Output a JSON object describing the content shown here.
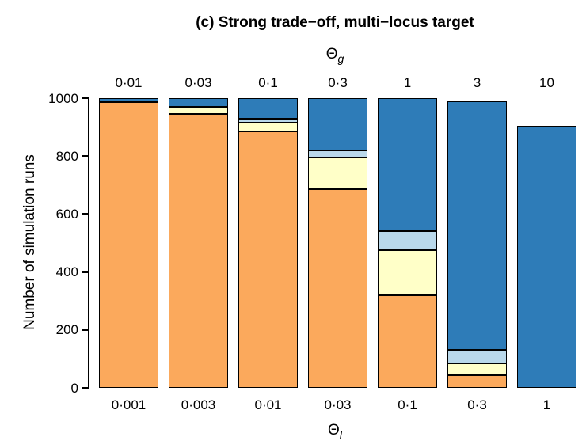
{
  "figure": {
    "title": "(c) Strong trade−off, multi−locus target",
    "ylabel": "Number of simulation runs"
  },
  "chart_data": {
    "type": "bar",
    "stacked": true,
    "title": "(c) Strong trade−off, multi−locus target",
    "ylabel": "Number of simulation runs",
    "ylim": [
      0,
      1000
    ],
    "yticks": [
      0,
      200,
      400,
      600,
      800,
      1000
    ],
    "grid": false,
    "legend": "none",
    "top_axis": {
      "label": "Θ",
      "label_sub": "g",
      "ticks": [
        "0·01",
        "0·03",
        "0·1",
        "0·3",
        "1",
        "3",
        "10"
      ]
    },
    "bottom_axis": {
      "label": "Θ",
      "label_sub": "l",
      "ticks": [
        "0·001",
        "0·003",
        "0·01",
        "0·03",
        "0·1",
        "0·3",
        "1"
      ]
    },
    "series": [
      {
        "name": "orange-segment",
        "color": "#FBA95C",
        "values": [
          985,
          945,
          885,
          685,
          320,
          45,
          0
        ]
      },
      {
        "name": "pale-yellow-segment",
        "color": "#FFFFC8",
        "values": [
          0,
          25,
          30,
          110,
          155,
          40,
          0
        ]
      },
      {
        "name": "light-blue-segment",
        "color": "#B9D8EA",
        "values": [
          0,
          0,
          15,
          25,
          65,
          45,
          0
        ]
      },
      {
        "name": "dark-blue-segment",
        "color": "#2E7CB8",
        "values": [
          15,
          30,
          70,
          180,
          460,
          860,
          905
        ]
      }
    ],
    "bar_totals": [
      1000,
      1000,
      1000,
      1000,
      1000,
      990,
      905
    ],
    "colors": {
      "orange": "#FBA95C",
      "pale_yellow": "#FFFFC8",
      "light_blue": "#B9D8EA",
      "dark_blue": "#2E7CB8",
      "bar_border": "#000000"
    }
  }
}
